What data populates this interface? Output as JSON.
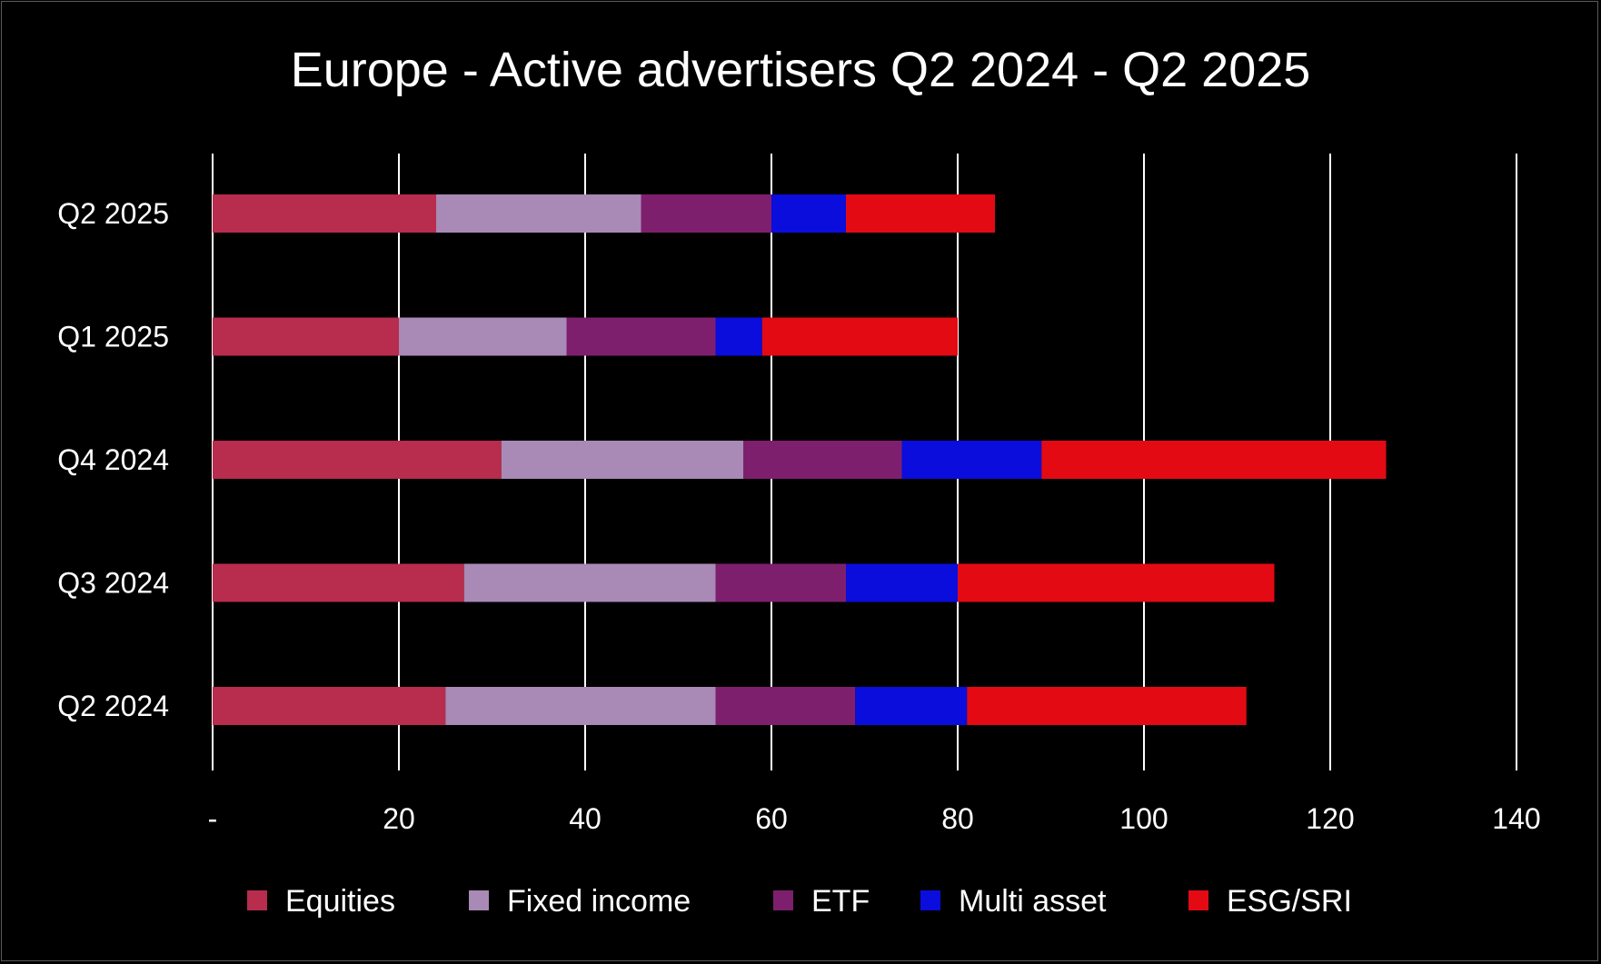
{
  "chart_data": {
    "type": "bar",
    "orientation": "horizontal",
    "stacked": true,
    "title": "Europe - Active advertisers Q2 2024 - Q2 2025",
    "categories": [
      "Q2 2025",
      "Q1 2025",
      "Q4 2024",
      "Q3 2024",
      "Q2 2024"
    ],
    "series": [
      {
        "name": "Equities",
        "color": "#b82c4e",
        "values": [
          24,
          20,
          31,
          27,
          25
        ]
      },
      {
        "name": "Fixed income",
        "color": "#a989b5",
        "values": [
          22,
          18,
          26,
          27,
          29
        ]
      },
      {
        "name": "ETF",
        "color": "#7e1f6e",
        "values": [
          14,
          16,
          17,
          14,
          15
        ]
      },
      {
        "name": "Multi asset",
        "color": "#0a0ddb",
        "values": [
          8,
          5,
          15,
          12,
          12
        ]
      },
      {
        "name": "ESG/SRI",
        "color": "#e30a14",
        "values": [
          16,
          21,
          37,
          34,
          30
        ]
      }
    ],
    "x_ticks": [
      0,
      20,
      40,
      60,
      80,
      100,
      120,
      140
    ],
    "x_tick_labels": [
      "-",
      "20",
      "40",
      "60",
      "80",
      "100",
      "120",
      "140"
    ],
    "xlim": [
      0,
      140
    ],
    "xlabel": "",
    "ylabel": "",
    "grid": "vertical lines",
    "legend_position": "bottom"
  }
}
